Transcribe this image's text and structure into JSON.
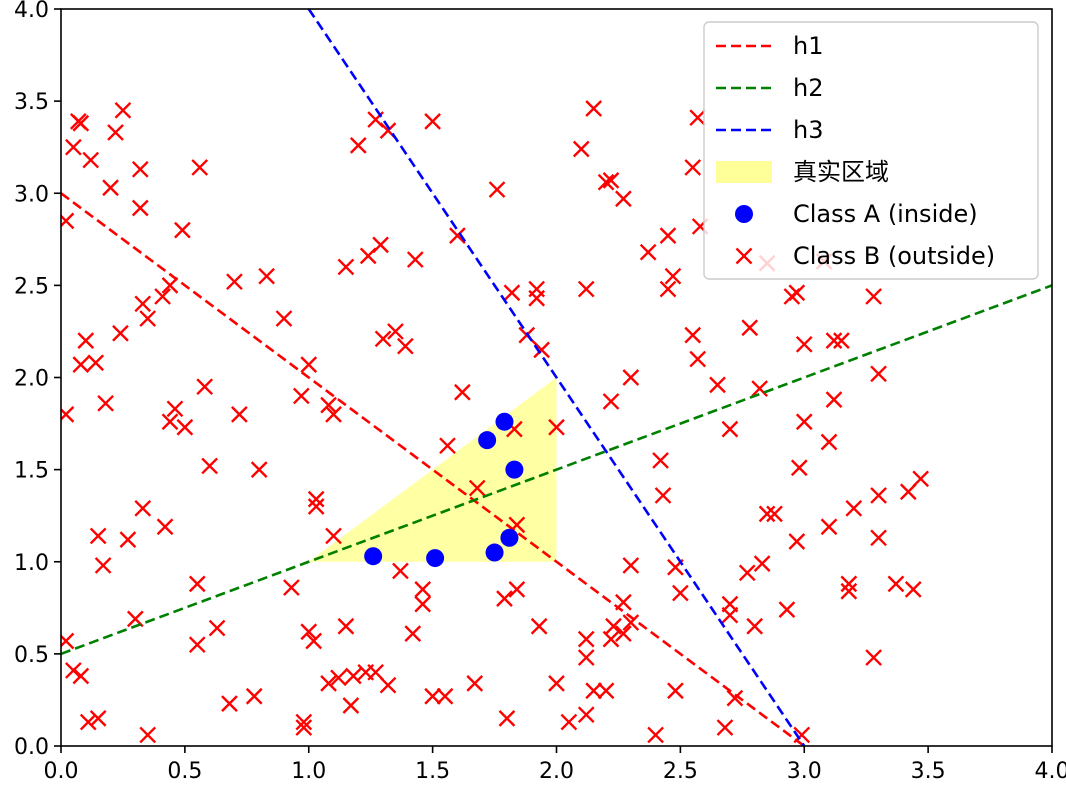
{
  "chart_data": {
    "type": "scatter",
    "title": "",
    "xlabel": "",
    "ylabel": "",
    "xlim": [
      0,
      4
    ],
    "ylim": [
      0,
      4
    ],
    "grid": false,
    "legend_position": "top-right",
    "xticks": [
      "0.0",
      "0.5",
      "1.0",
      "1.5",
      "2.0",
      "2.5",
      "3.0",
      "3.5",
      "4.0"
    ],
    "yticks": [
      "0.0",
      "0.5",
      "1.0",
      "1.5",
      "2.0",
      "2.5",
      "3.0",
      "3.5",
      "4.0"
    ],
    "lines": [
      {
        "name": "h1",
        "color": "#ff0000",
        "x": [
          0,
          3
        ],
        "y": [
          3,
          0
        ]
      },
      {
        "name": "h2",
        "color": "#008000",
        "x": [
          0,
          4
        ],
        "y": [
          0.5,
          2.5
        ]
      },
      {
        "name": "h3",
        "color": "#0000ff",
        "x": [
          1,
          3
        ],
        "y": [
          4,
          0
        ]
      }
    ],
    "region": {
      "name": "真实区域",
      "color": "#ffff99",
      "vertices": [
        [
          1,
          1
        ],
        [
          2,
          1
        ],
        [
          2,
          2
        ]
      ]
    },
    "series": [
      {
        "name": "Class A (inside)",
        "marker": "circle",
        "color": "#0000ff",
        "points": [
          [
            1.26,
            1.03
          ],
          [
            1.51,
            1.02
          ],
          [
            1.72,
            1.66
          ],
          [
            1.79,
            1.76
          ],
          [
            1.83,
            1.5
          ],
          [
            1.75,
            1.05
          ],
          [
            1.81,
            1.13
          ]
        ]
      },
      {
        "name": "Class B (outside)",
        "marker": "x",
        "color": "#ff0000",
        "points": [
          [
            0.02,
            2.85
          ],
          [
            0.02,
            1.8
          ],
          [
            0.02,
            0.57
          ],
          [
            0.05,
            3.25
          ],
          [
            0.07,
            3.39
          ],
          [
            0.08,
            3.38
          ],
          [
            0.1,
            2.2
          ],
          [
            0.12,
            3.18
          ],
          [
            0.08,
            2.07
          ],
          [
            0.14,
            2.08
          ],
          [
            0.18,
            1.86
          ],
          [
            0.2,
            3.03
          ],
          [
            0.22,
            3.33
          ],
          [
            0.25,
            3.45
          ],
          [
            0.32,
            3.13
          ],
          [
            0.32,
            2.92
          ],
          [
            0.24,
            2.24
          ],
          [
            0.35,
            2.32
          ],
          [
            0.33,
            2.4
          ],
          [
            0.41,
            2.44
          ],
          [
            0.44,
            2.5
          ],
          [
            0.49,
            2.8
          ],
          [
            0.56,
            3.14
          ],
          [
            0.27,
            1.12
          ],
          [
            0.15,
            1.14
          ],
          [
            0.17,
            0.98
          ],
          [
            0.33,
            1.29
          ],
          [
            0.42,
            1.19
          ],
          [
            0.44,
            1.76
          ],
          [
            0.46,
            1.83
          ],
          [
            0.5,
            1.73
          ],
          [
            0.58,
            1.95
          ],
          [
            0.6,
            1.52
          ],
          [
            0.7,
            2.52
          ],
          [
            0.72,
            1.8
          ],
          [
            0.8,
            1.5
          ],
          [
            0.83,
            2.55
          ],
          [
            0.9,
            2.32
          ],
          [
            0.97,
            1.9
          ],
          [
            1.0,
            2.07
          ],
          [
            1.08,
            1.85
          ],
          [
            1.1,
            1.8
          ],
          [
            1.03,
            1.34
          ],
          [
            1.03,
            1.3
          ],
          [
            1.1,
            1.14
          ],
          [
            1.15,
            2.6
          ],
          [
            1.2,
            3.26
          ],
          [
            1.24,
            2.66
          ],
          [
            1.27,
            3.4
          ],
          [
            1.29,
            2.72
          ],
          [
            1.32,
            3.34
          ],
          [
            1.3,
            2.21
          ],
          [
            1.35,
            2.25
          ],
          [
            1.39,
            2.17
          ],
          [
            1.43,
            2.64
          ],
          [
            1.5,
            3.39
          ],
          [
            1.6,
            2.77
          ],
          [
            1.62,
            1.92
          ],
          [
            1.76,
            3.02
          ],
          [
            1.82,
            2.46
          ],
          [
            1.88,
            2.23
          ],
          [
            1.92,
            2.48
          ],
          [
            1.92,
            2.43
          ],
          [
            1.94,
            2.15
          ],
          [
            2.0,
            1.73
          ],
          [
            2.1,
            3.24
          ],
          [
            2.12,
            2.48
          ],
          [
            2.15,
            3.46
          ],
          [
            2.2,
            3.06
          ],
          [
            2.22,
            3.07
          ],
          [
            2.27,
            2.97
          ],
          [
            2.22,
            1.87
          ],
          [
            2.3,
            2.0
          ],
          [
            2.37,
            2.68
          ],
          [
            2.42,
            1.55
          ],
          [
            2.43,
            1.36
          ],
          [
            2.45,
            2.48
          ],
          [
            2.47,
            2.55
          ],
          [
            2.45,
            2.77
          ],
          [
            2.57,
            3.41
          ],
          [
            2.55,
            3.14
          ],
          [
            2.58,
            2.82
          ],
          [
            2.55,
            2.23
          ],
          [
            2.57,
            2.1
          ],
          [
            2.65,
            1.96
          ],
          [
            2.7,
            1.72
          ],
          [
            2.78,
            2.27
          ],
          [
            2.82,
            1.94
          ],
          [
            2.85,
            1.26
          ],
          [
            2.85,
            2.62
          ],
          [
            2.95,
            2.44
          ],
          [
            2.97,
            2.46
          ],
          [
            3.0,
            2.18
          ],
          [
            2.98,
            1.51
          ],
          [
            3.0,
            1.76
          ],
          [
            2.97,
            1.11
          ],
          [
            3.08,
            2.63
          ],
          [
            3.12,
            2.2
          ],
          [
            3.15,
            2.2
          ],
          [
            3.12,
            1.88
          ],
          [
            3.1,
            1.65
          ],
          [
            3.2,
            1.29
          ],
          [
            3.1,
            1.19
          ],
          [
            3.28,
            2.44
          ],
          [
            3.3,
            2.02
          ],
          [
            3.3,
            1.36
          ],
          [
            3.3,
            1.13
          ],
          [
            3.28,
            0.48
          ],
          [
            3.37,
            0.88
          ],
          [
            3.42,
            1.38
          ],
          [
            3.47,
            1.45
          ],
          [
            3.44,
            0.85
          ],
          [
            3.18,
            0.88
          ],
          [
            3.18,
            0.84
          ],
          [
            2.88,
            1.26
          ],
          [
            2.93,
            0.74
          ],
          [
            2.83,
            0.99
          ],
          [
            2.77,
            0.94
          ],
          [
            2.8,
            0.65
          ],
          [
            2.7,
            0.77
          ],
          [
            2.7,
            0.71
          ],
          [
            2.72,
            0.26
          ],
          [
            2.5,
            0.83
          ],
          [
            2.48,
            0.97
          ],
          [
            2.3,
            0.98
          ],
          [
            2.3,
            0.67
          ],
          [
            2.27,
            0.78
          ],
          [
            2.27,
            0.61
          ],
          [
            2.23,
            0.65
          ],
          [
            2.22,
            0.58
          ],
          [
            2.2,
            0.3
          ],
          [
            2.12,
            0.58
          ],
          [
            2.12,
            0.48
          ],
          [
            2.15,
            0.3
          ],
          [
            2.12,
            0.17
          ],
          [
            2.05,
            0.13
          ],
          [
            2.0,
            0.34
          ],
          [
            1.93,
            0.65
          ],
          [
            1.84,
            0.85
          ],
          [
            1.79,
            0.8
          ],
          [
            1.83,
            1.72
          ],
          [
            1.67,
            0.34
          ],
          [
            1.55,
            0.27
          ],
          [
            1.5,
            0.27
          ],
          [
            1.46,
            0.77
          ],
          [
            1.46,
            0.85
          ],
          [
            1.42,
            0.61
          ],
          [
            1.37,
            0.95
          ],
          [
            1.32,
            0.33
          ],
          [
            1.27,
            0.4
          ],
          [
            1.23,
            0.4
          ],
          [
            1.18,
            0.38
          ],
          [
            1.17,
            0.22
          ],
          [
            1.15,
            0.65
          ],
          [
            1.12,
            0.37
          ],
          [
            1.08,
            0.34
          ],
          [
            1.02,
            0.57
          ],
          [
            1.0,
            0.62
          ],
          [
            0.98,
            0.13
          ],
          [
            0.98,
            0.1
          ],
          [
            0.93,
            0.86
          ],
          [
            0.78,
            0.27
          ],
          [
            0.68,
            0.23
          ],
          [
            0.63,
            0.64
          ],
          [
            0.55,
            0.88
          ],
          [
            0.55,
            0.55
          ],
          [
            0.35,
            0.06
          ],
          [
            0.3,
            0.69
          ],
          [
            0.15,
            0.15
          ],
          [
            0.11,
            0.13
          ],
          [
            0.08,
            0.38
          ],
          [
            0.05,
            0.41
          ],
          [
            1.8,
            0.15
          ],
          [
            2.4,
            0.06
          ],
          [
            2.48,
            0.3
          ],
          [
            2.68,
            0.1
          ],
          [
            2.99,
            0.06
          ],
          [
            1.68,
            1.4
          ],
          [
            1.84,
            1.2
          ],
          [
            1.56,
            1.63
          ]
        ]
      }
    ]
  }
}
